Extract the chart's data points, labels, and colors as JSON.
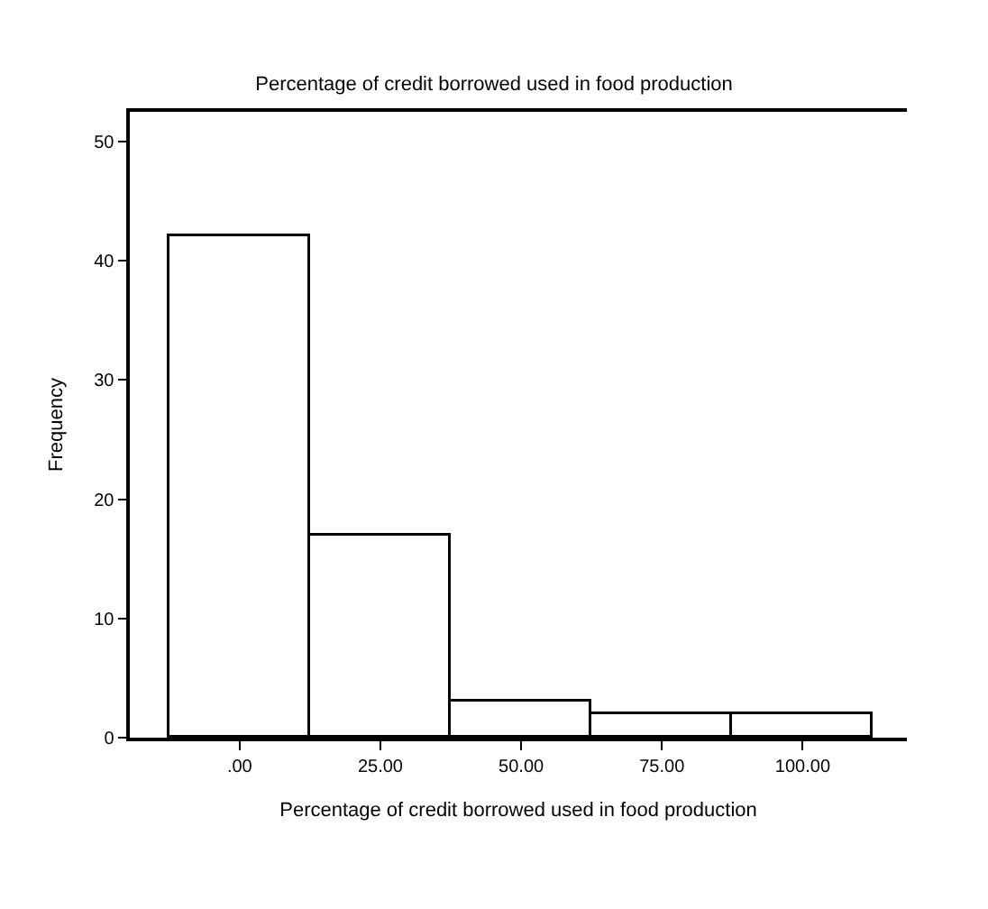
{
  "chart_data": {
    "type": "histogram",
    "title": "Percentage of credit borrowed used in food production",
    "xlabel": "Percentage of credit borrowed used in food production",
    "ylabel": "Frequency",
    "bins": [
      -12.5,
      12.5,
      37.5,
      62.5,
      87.5,
      112.5
    ],
    "values": [
      42,
      17,
      3,
      2,
      2
    ],
    "color": "#ffffff",
    "xlim": [
      -19.5,
      118.5
    ],
    "xticks": [
      {
        "value": 0,
        "label": ".00"
      },
      {
        "value": 25,
        "label": "25.00"
      },
      {
        "value": 50,
        "label": "50.00"
      },
      {
        "value": 75,
        "label": "75.00"
      },
      {
        "value": 100,
        "label": "100.00"
      }
    ],
    "ylim": [
      0,
      52.5
    ],
    "yticks": [
      0,
      10,
      20,
      30,
      40,
      50
    ],
    "legend": false
  }
}
